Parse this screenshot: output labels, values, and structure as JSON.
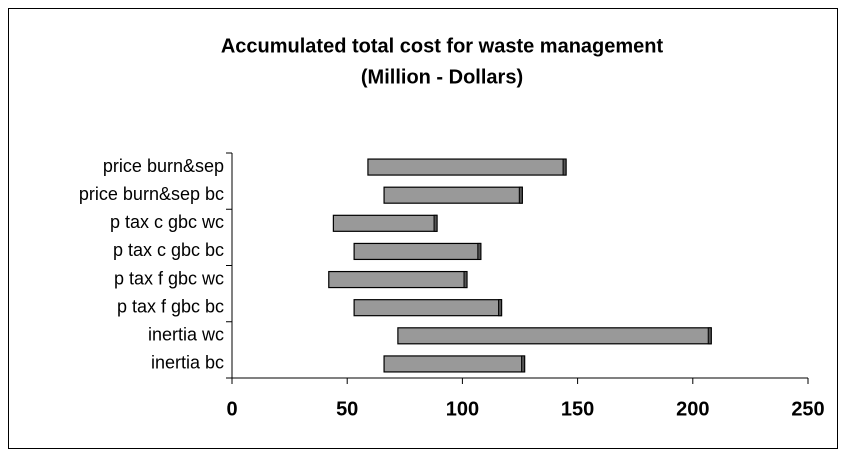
{
  "chart_data": {
    "type": "range-bar",
    "title": "Accumulated total cost for waste management",
    "subtitle": "(Million - Dollars)",
    "categories": [
      "price burn&sep",
      "price burn&sep bc",
      "p tax c gbc wc",
      "p tax c gbc bc",
      "p tax f gbc wc",
      "p tax f gbc bc",
      "inertia wc",
      "inertia bc"
    ],
    "starts": [
      59,
      66,
      44,
      53,
      42,
      53,
      72,
      66
    ],
    "ends": [
      145,
      126,
      89,
      108,
      102,
      117,
      208,
      127
    ],
    "color": "#999999",
    "xlim": [
      0,
      250
    ],
    "xticks": [
      0,
      50,
      100,
      150,
      200,
      250
    ]
  }
}
